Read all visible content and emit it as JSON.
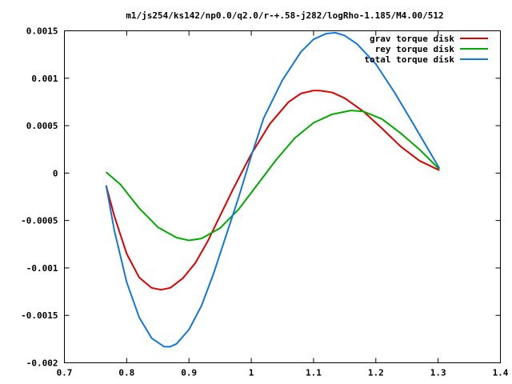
{
  "chart_data": {
    "type": "line",
    "title": "m1/js254/ks142/np0.0/q2.0/r-+.58-j282/logRho-1.185/M4.00/512",
    "xlabel": "",
    "ylabel": "",
    "xlim": [
      0.7,
      1.4
    ],
    "ylim": [
      -0.002,
      0.0015
    ],
    "x_ticks": [
      "0.7",
      "0.8",
      "0.9",
      "1",
      "1.1",
      "1.2",
      "1.3",
      "1.4"
    ],
    "y_ticks": [
      "0.0015",
      "0.001",
      "0.0005",
      "0",
      "-0.0005",
      "-0.001",
      "-0.0015",
      "-0.002"
    ],
    "grid": false,
    "legend_position": "top-right",
    "series": [
      {
        "name": "grav torque disk",
        "color": "#dd0000",
        "x": [
          0.767,
          0.78,
          0.8,
          0.82,
          0.84,
          0.855,
          0.87,
          0.89,
          0.91,
          0.93,
          0.95,
          0.97,
          1.0,
          1.03,
          1.06,
          1.08,
          1.1,
          1.11,
          1.13,
          1.15,
          1.18,
          1.21,
          1.24,
          1.27,
          1.302
        ],
        "y": [
          -0.00013,
          -0.00045,
          -0.00085,
          -0.0011,
          -0.00121,
          -0.00123,
          -0.00121,
          -0.00111,
          -0.00095,
          -0.00072,
          -0.00045,
          -0.00018,
          0.0002,
          0.00052,
          0.00075,
          0.00084,
          0.00087,
          0.00087,
          0.00085,
          0.00079,
          0.00065,
          0.00047,
          0.00028,
          0.00013,
          3e-05
        ]
      },
      {
        "name": "rey torque disk",
        "color": "#00aa00",
        "x": [
          0.767,
          0.79,
          0.82,
          0.85,
          0.88,
          0.9,
          0.92,
          0.95,
          0.98,
          1.01,
          1.04,
          1.07,
          1.1,
          1.13,
          1.16,
          1.18,
          1.21,
          1.24,
          1.27,
          1.302
        ],
        "y": [
          1e-05,
          -0.00012,
          -0.00037,
          -0.00057,
          -0.00068,
          -0.00071,
          -0.00069,
          -0.00058,
          -0.00038,
          -0.00012,
          0.00014,
          0.00037,
          0.00053,
          0.00062,
          0.00066,
          0.00065,
          0.00057,
          0.00042,
          0.00025,
          4e-05
        ]
      },
      {
        "name": "total torque disk",
        "color": "#1177dd",
        "x": [
          0.767,
          0.78,
          0.8,
          0.82,
          0.84,
          0.86,
          0.87,
          0.88,
          0.9,
          0.92,
          0.94,
          0.96,
          0.98,
          1.0,
          1.02,
          1.05,
          1.08,
          1.1,
          1.12,
          1.135,
          1.15,
          1.17,
          1.2,
          1.23,
          1.26,
          1.302
        ],
        "y": [
          -0.00013,
          -0.0006,
          -0.00115,
          -0.00152,
          -0.00174,
          -0.00183,
          -0.00183,
          -0.0018,
          -0.00165,
          -0.0014,
          -0.00105,
          -0.00065,
          -0.00025,
          0.00018,
          0.00058,
          0.00098,
          0.00128,
          0.00141,
          0.00147,
          0.00148,
          0.00145,
          0.00136,
          0.00115,
          0.00085,
          0.00052,
          5e-05
        ]
      }
    ]
  }
}
